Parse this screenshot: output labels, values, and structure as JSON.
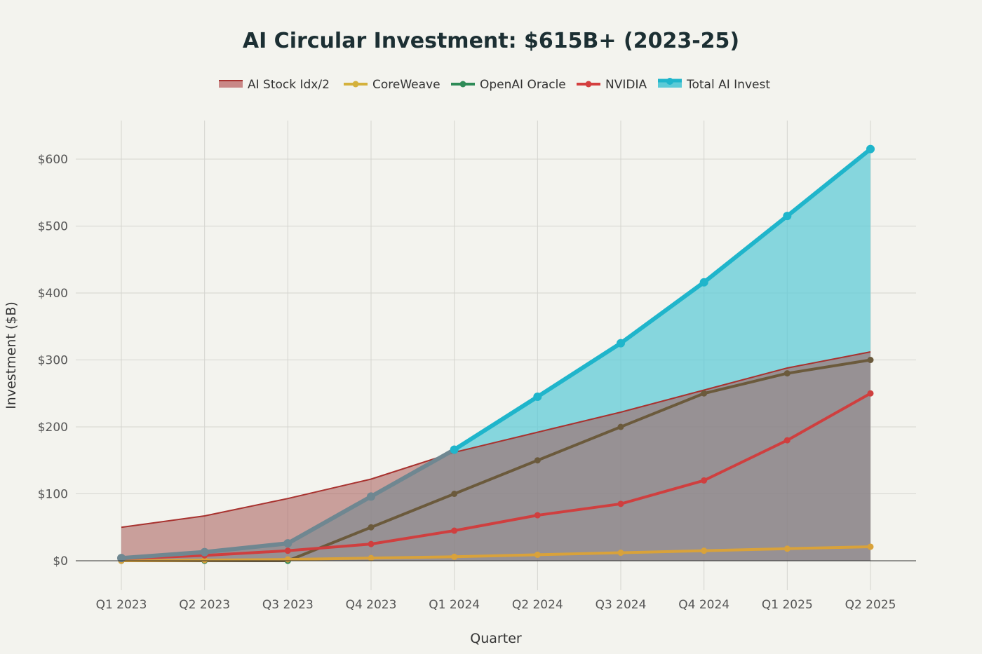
{
  "chart_data": {
    "type": "area",
    "title": "AI Circular Investment: $615B+ (2023-25)",
    "xlabel": "Quarter",
    "ylabel": "Investment ($B)",
    "categories": [
      "Q1 2023",
      "Q2 2023",
      "Q3 2023",
      "Q4 2023",
      "Q1 2024",
      "Q2 2024",
      "Q3 2024",
      "Q4 2024",
      "Q1 2025",
      "Q2 2025"
    ],
    "ylim": [
      -50,
      650
    ],
    "yticks": [
      0,
      100,
      200,
      300,
      400,
      500,
      600
    ],
    "ytick_labels": [
      "$0",
      "$100",
      "$200",
      "$300",
      "$400",
      "$500",
      "$600"
    ],
    "grid": true,
    "legend_position": "top",
    "series": [
      {
        "name": "AI Stock Idx/2",
        "style": "area",
        "color": "#c0504d",
        "fill": "#c0504d",
        "values": [
          50,
          67,
          93,
          122,
          162,
          192,
          222,
          255,
          288,
          312
        ]
      },
      {
        "name": "CoreWeave",
        "style": "line",
        "color": "#d4b13c",
        "values": [
          0,
          1,
          2,
          4,
          6,
          9,
          12,
          15,
          18,
          21
        ]
      },
      {
        "name": "OpenAI Oracle",
        "style": "line",
        "color": "#2e8b57",
        "values": [
          0,
          0,
          0,
          50,
          100,
          150,
          200,
          250,
          280,
          300
        ]
      },
      {
        "name": "NVIDIA",
        "style": "line",
        "color": "#d43f3f",
        "values": [
          3,
          8,
          15,
          25,
          45,
          68,
          85,
          120,
          180,
          250
        ]
      },
      {
        "name": "Total AI Invest",
        "style": "area",
        "color": "#1fb5cb",
        "fill": "#5ccbd7",
        "values": [
          4,
          13,
          26,
          96,
          166,
          245,
          325,
          416,
          515,
          615
        ]
      }
    ]
  }
}
